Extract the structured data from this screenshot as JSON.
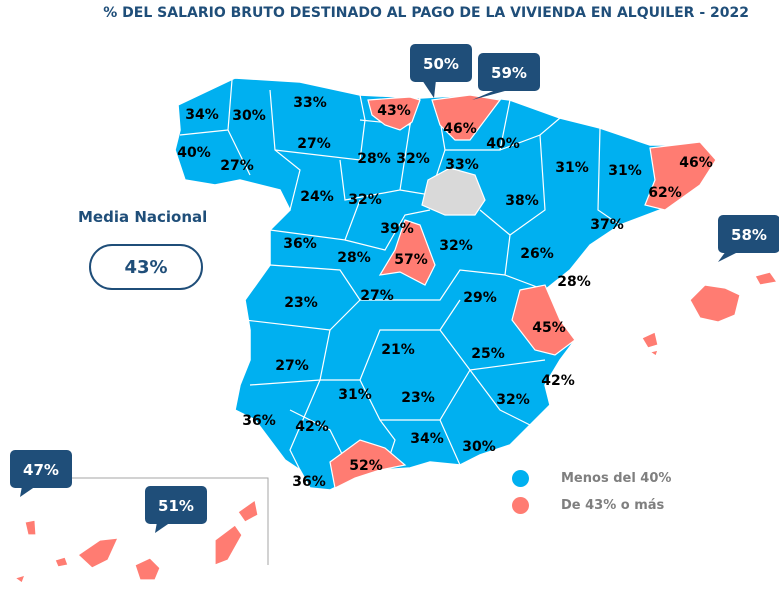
{
  "title": "% DEL SALARIO BRUTO DESTINADO AL PAGO DE LA VIVIENDA EN ALQUILER - 2022",
  "media_nacional": {
    "label": "Media Nacional",
    "value": "43%"
  },
  "legend": [
    {
      "label": "Menos del 40%",
      "color": "#00b0f0"
    },
    {
      "label": "De 43% o más",
      "color": "#ff7c72"
    }
  ],
  "colors": {
    "low": "#00b0f0",
    "high": "#ff7c72",
    "nodata": "#d9d9d9",
    "callout": "#1f4e79"
  },
  "province_labels": [
    "34%",
    "30%",
    "33%",
    "43%",
    "46%",
    "40%",
    "40%",
    "27%",
    "27%",
    "28%",
    "32%",
    "33%",
    "31%",
    "31%",
    "46%",
    "62%",
    "24%",
    "32%",
    "38%",
    "37%",
    "36%",
    "39%",
    "28%",
    "57%",
    "32%",
    "26%",
    "28%",
    "23%",
    "27%",
    "29%",
    "45%",
    "27%",
    "21%",
    "25%",
    "42%",
    "31%",
    "23%",
    "32%",
    "36%",
    "42%",
    "34%",
    "30%",
    "52%",
    "36%"
  ],
  "callouts": [
    "50%",
    "59%",
    "58%",
    "47%",
    "51%"
  ]
}
